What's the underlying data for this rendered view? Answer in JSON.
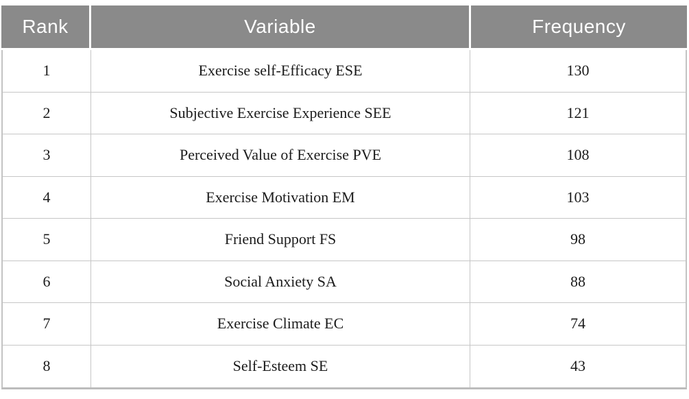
{
  "table": {
    "columns": {
      "rank": "Rank",
      "variable": "Variable",
      "frequency": "Frequency"
    },
    "rows": [
      {
        "rank": "1",
        "variable": "Exercise self-Efficacy ESE",
        "frequency": "130"
      },
      {
        "rank": "2",
        "variable": "Subjective Exercise Experience SEE",
        "frequency": "121"
      },
      {
        "rank": "3",
        "variable": "Perceived Value of Exercise PVE",
        "frequency": "108"
      },
      {
        "rank": "4",
        "variable": "Exercise Motivation EM",
        "frequency": "103"
      },
      {
        "rank": "5",
        "variable": "Friend Support FS",
        "frequency": "98"
      },
      {
        "rank": "6",
        "variable": "Social Anxiety SA",
        "frequency": "88"
      },
      {
        "rank": "7",
        "variable": "Exercise Climate EC",
        "frequency": "74"
      },
      {
        "rank": "8",
        "variable": "Self-Esteem SE",
        "frequency": "43"
      }
    ]
  },
  "chart_data": {
    "type": "table",
    "columns": [
      "Rank",
      "Variable",
      "Frequency"
    ],
    "rows": [
      [
        1,
        "Exercise self-Efficacy ESE",
        130
      ],
      [
        2,
        "Subjective Exercise Experience SEE",
        121
      ],
      [
        3,
        "Perceived Value of Exercise PVE",
        108
      ],
      [
        4,
        "Exercise Motivation EM",
        103
      ],
      [
        5,
        "Friend Support FS",
        98
      ],
      [
        6,
        "Social Anxiety SA",
        88
      ],
      [
        7,
        "Exercise Climate EC",
        74
      ],
      [
        8,
        "Self-Esteem SE",
        43
      ]
    ]
  },
  "colors": {
    "header_background": "#8a8a8a",
    "header_text": "#ffffff",
    "body_text": "#1b1b1b",
    "grid_line": "#c6c6c6",
    "outer_border": "#bcbcbc"
  }
}
